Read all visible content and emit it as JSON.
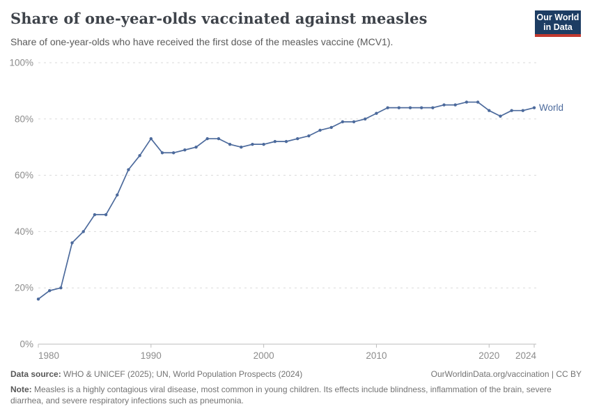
{
  "header": {
    "title": "Share of one-year-olds vaccinated against measles",
    "subtitle": "Share of one-year-olds who have received the first dose of the measles vaccine (MCV1).",
    "logo": {
      "line1": "Our World",
      "line2": "in Data"
    }
  },
  "chart_data": {
    "type": "line",
    "title": "Share of one-year-olds vaccinated against measles",
    "xlabel": "",
    "ylabel": "",
    "xlim": [
      1980,
      2024
    ],
    "ylim": [
      0,
      100
    ],
    "x_ticks": [
      1980,
      1990,
      2000,
      2010,
      2020,
      2024
    ],
    "y_ticks": [
      0,
      20,
      40,
      60,
      80,
      100
    ],
    "y_tick_suffix": "%",
    "grid": "horizontal-dashed",
    "legend_position": "end-of-line-label",
    "series": [
      {
        "name": "World",
        "color": "#4c6a9c",
        "x": [
          1980,
          1981,
          1982,
          1983,
          1984,
          1985,
          1986,
          1987,
          1988,
          1989,
          1990,
          1991,
          1992,
          1993,
          1994,
          1995,
          1996,
          1997,
          1998,
          1999,
          2000,
          2001,
          2002,
          2003,
          2004,
          2005,
          2006,
          2007,
          2008,
          2009,
          2010,
          2011,
          2012,
          2013,
          2014,
          2015,
          2016,
          2017,
          2018,
          2019,
          2020,
          2021,
          2022,
          2023,
          2024
        ],
        "values": [
          16,
          19,
          20,
          36,
          40,
          46,
          46,
          53,
          62,
          67,
          73,
          68,
          68,
          69,
          70,
          73,
          73,
          71,
          70,
          71,
          71,
          72,
          72,
          73,
          74,
          76,
          77,
          79,
          79,
          80,
          82,
          84,
          84,
          84,
          84,
          84,
          85,
          85,
          86,
          86,
          83,
          81,
          83,
          83,
          84
        ]
      }
    ]
  },
  "footer": {
    "datasource_label": "Data source:",
    "datasource_text": " WHO & UNICEF (2025); UN, World Population Prospects (2024)",
    "license_text": "OurWorldinData.org/vaccination | CC BY",
    "note_label": "Note:",
    "note_text": " Measles is a highly contagious viral disease, most common in young children. Its effects include blindness, inflammation of the brain, severe diarrhea, and severe respiratory infections such as pneumonia."
  },
  "colors": {
    "line": "#4c6a9c",
    "grid": "#dadada",
    "axis": "#bcbcbc",
    "tick_label": "#8c8c8c",
    "logo_bg": "#1d3d63",
    "logo_accent": "#c2392f"
  }
}
